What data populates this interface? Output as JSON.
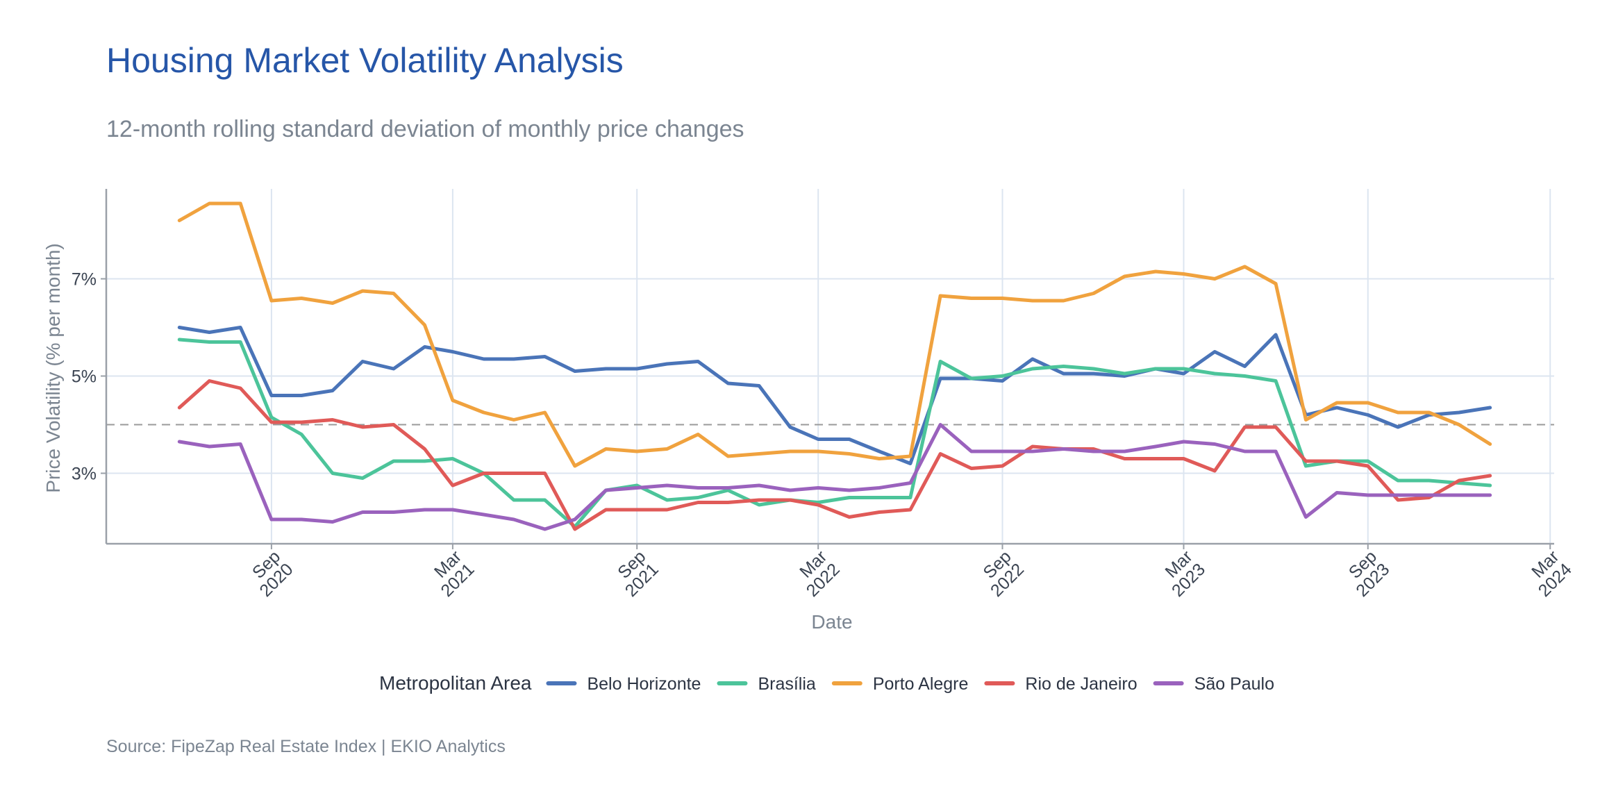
{
  "title": "Housing Market Volatility Analysis",
  "subtitle": "12-month rolling standard deviation of monthly price changes",
  "caption": "Source: FipeZap Real Estate Index | EKIO Analytics",
  "colors": {
    "Belo Horizonte": "#4a74b8",
    "Brasília": "#4cc49a",
    "Porto Alegre": "#f0a23e",
    "Rio de Janeiro": "#e05a58",
    "São Paulo": "#9a62bd",
    "grid": "#dce5f0",
    "axis": "#9aa0a8",
    "reference": "#9a9a9a"
  },
  "chart_data": {
    "type": "line",
    "xlabel": "Date",
    "ylabel": "Price Volatility (% per month)",
    "x_ticks": [
      {
        "date": "2020-09-01",
        "month": "Sep",
        "year": "2020"
      },
      {
        "date": "2021-03-01",
        "month": "Mar",
        "year": "2021"
      },
      {
        "date": "2021-09-01",
        "month": "Sep",
        "year": "2021"
      },
      {
        "date": "2022-03-01",
        "month": "Mar",
        "year": "2022"
      },
      {
        "date": "2022-09-01",
        "month": "Sep",
        "year": "2022"
      },
      {
        "date": "2023-03-01",
        "month": "Mar",
        "year": "2023"
      },
      {
        "date": "2023-09-01",
        "month": "Sep",
        "year": "2023"
      },
      {
        "date": "2024-03-01",
        "month": "Mar",
        "year": "2024"
      }
    ],
    "x_range": [
      "2020-03-20",
      "2024-03-05"
    ],
    "y_ticks": [
      {
        "value": 3,
        "label": "3%"
      },
      {
        "value": 5,
        "label": "5%"
      },
      {
        "value": 7,
        "label": "7%"
      }
    ],
    "ylim": [
      1.55,
      8.85
    ],
    "reference_line": 4.0,
    "legend": {
      "title": "Metropolitan Area",
      "position": "bottom"
    },
    "grid": true,
    "x": [
      "2020-06-01",
      "2020-07-01",
      "2020-08-01",
      "2020-09-01",
      "2020-10-01",
      "2020-11-01",
      "2020-12-01",
      "2021-01-01",
      "2021-02-01",
      "2021-03-01",
      "2021-04-01",
      "2021-05-01",
      "2021-06-01",
      "2021-07-01",
      "2021-08-01",
      "2021-09-01",
      "2021-10-01",
      "2021-11-01",
      "2021-12-01",
      "2022-01-01",
      "2022-02-01",
      "2022-03-01",
      "2022-04-01",
      "2022-05-01",
      "2022-06-01",
      "2022-07-01",
      "2022-08-01",
      "2022-09-01",
      "2022-10-01",
      "2022-11-01",
      "2022-12-01",
      "2023-01-01",
      "2023-02-01",
      "2023-03-01",
      "2023-04-01",
      "2023-05-01",
      "2023-06-01",
      "2023-07-01",
      "2023-08-01",
      "2023-09-01",
      "2023-10-01",
      "2023-11-01",
      "2023-12-01",
      "2024-01-01"
    ],
    "series": [
      {
        "name": "Belo Horizonte",
        "values": [
          6.0,
          5.9,
          6.0,
          4.6,
          4.6,
          4.7,
          5.3,
          5.15,
          5.6,
          5.5,
          5.35,
          5.35,
          5.4,
          5.1,
          5.15,
          5.15,
          5.25,
          5.3,
          4.85,
          4.8,
          3.95,
          3.7,
          3.7,
          3.45,
          3.2,
          4.95,
          4.95,
          4.9,
          5.35,
          5.05,
          5.05,
          5.0,
          5.15,
          5.05,
          5.5,
          5.2,
          5.85,
          4.2,
          4.35,
          4.2,
          3.95,
          4.2,
          4.25,
          4.35
        ]
      },
      {
        "name": "Brasília",
        "values": [
          5.75,
          5.7,
          5.7,
          4.15,
          3.8,
          3.0,
          2.9,
          3.25,
          3.25,
          3.3,
          3.0,
          2.45,
          2.45,
          1.9,
          2.65,
          2.75,
          2.45,
          2.5,
          2.65,
          2.35,
          2.45,
          2.4,
          2.5,
          2.5,
          2.5,
          5.3,
          4.95,
          5.0,
          5.15,
          5.2,
          5.15,
          5.05,
          5.15,
          5.15,
          5.05,
          5.0,
          4.9,
          3.15,
          3.25,
          3.25,
          2.85,
          2.85,
          2.8,
          2.75
        ]
      },
      {
        "name": "Porto Alegre",
        "values": [
          8.2,
          8.55,
          8.55,
          6.55,
          6.6,
          6.5,
          6.75,
          6.7,
          6.05,
          4.5,
          4.25,
          4.1,
          4.25,
          3.15,
          3.5,
          3.45,
          3.5,
          3.8,
          3.35,
          3.4,
          3.45,
          3.45,
          3.4,
          3.3,
          3.35,
          6.65,
          6.6,
          6.6,
          6.55,
          6.55,
          6.7,
          7.05,
          7.15,
          7.1,
          7.0,
          7.25,
          6.9,
          4.1,
          4.45,
          4.45,
          4.25,
          4.25,
          4.0,
          3.6
        ]
      },
      {
        "name": "Rio de Janeiro",
        "values": [
          4.35,
          4.9,
          4.75,
          4.05,
          4.05,
          4.1,
          3.95,
          4.0,
          3.5,
          2.75,
          3.0,
          3.0,
          3.0,
          1.85,
          2.25,
          2.25,
          2.25,
          2.4,
          2.4,
          2.45,
          2.45,
          2.35,
          2.1,
          2.2,
          2.25,
          3.4,
          3.1,
          3.15,
          3.55,
          3.5,
          3.5,
          3.3,
          3.3,
          3.3,
          3.05,
          3.95,
          3.95,
          3.25,
          3.25,
          3.15,
          2.45,
          2.5,
          2.85,
          2.95
        ]
      },
      {
        "name": "São Paulo",
        "values": [
          3.65,
          3.55,
          3.6,
          2.05,
          2.05,
          2.0,
          2.2,
          2.2,
          2.25,
          2.25,
          2.15,
          2.05,
          1.85,
          2.05,
          2.65,
          2.7,
          2.75,
          2.7,
          2.7,
          2.75,
          2.65,
          2.7,
          2.65,
          2.7,
          2.8,
          4.0,
          3.45,
          3.45,
          3.45,
          3.5,
          3.45,
          3.45,
          3.55,
          3.65,
          3.6,
          3.45,
          3.45,
          2.1,
          2.6,
          2.55,
          2.55,
          2.55,
          2.55,
          2.55
        ]
      }
    ]
  }
}
